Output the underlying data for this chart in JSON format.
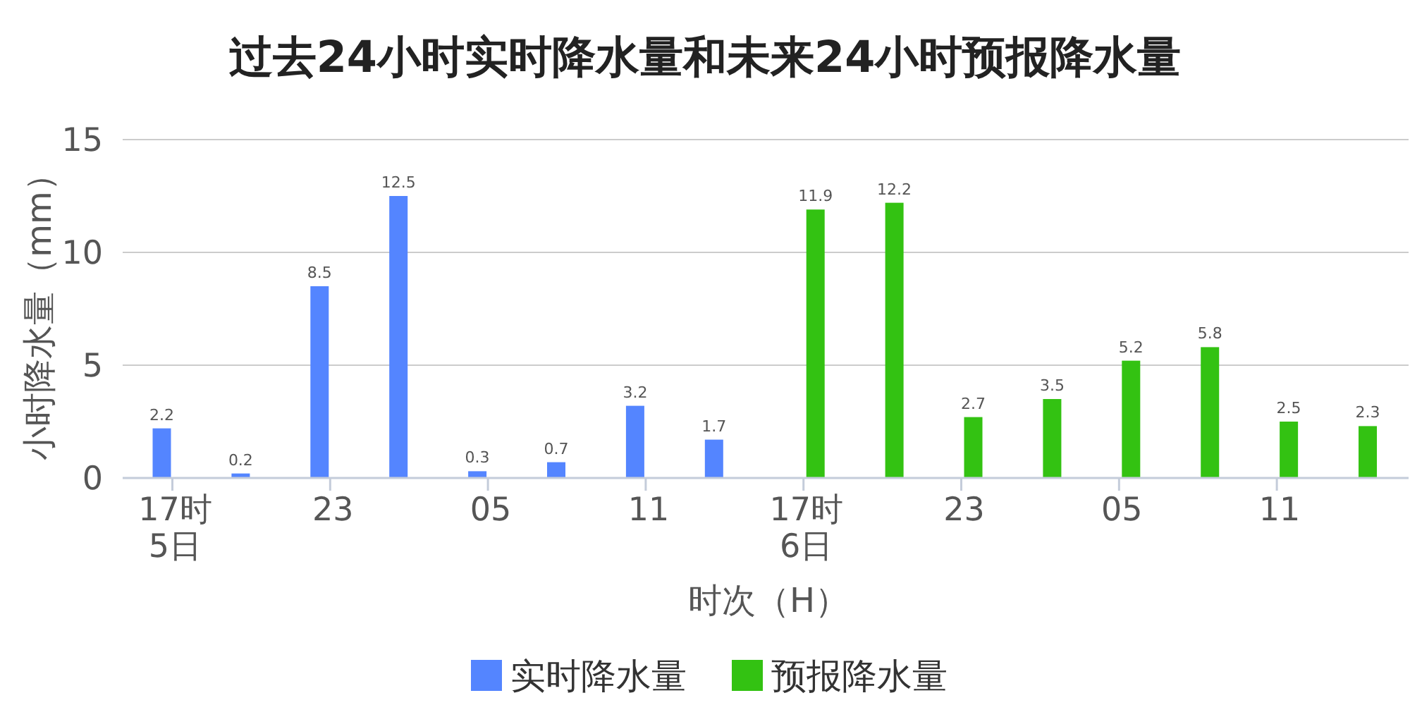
{
  "chart_data": {
    "type": "bar",
    "title": "过去24小时实时降水量和未来24小时预报降水量",
    "xlabel": "时次（H）",
    "ylabel": "小时降水量（mm）",
    "categories": [
      "17时\n5日",
      null,
      "23",
      null,
      "05",
      null,
      "11",
      null,
      "17时\n6日",
      null,
      "23",
      null,
      "05",
      null,
      "11",
      null
    ],
    "series": [
      {
        "name": "实时降水量",
        "color": "#5485ff",
        "values": [
          2.2,
          0.2,
          8.5,
          12.5,
          0.3,
          0.7,
          3.2,
          1.7,
          null,
          null,
          null,
          null,
          null,
          null,
          null,
          null
        ]
      },
      {
        "name": "预报降水量",
        "color": "#33c212",
        "values": [
          null,
          null,
          null,
          null,
          null,
          null,
          null,
          null,
          11.9,
          12.2,
          2.7,
          3.5,
          5.2,
          5.8,
          2.5,
          2.3
        ]
      }
    ],
    "ylim": [
      0,
      15
    ],
    "yticks": [
      0,
      5,
      10,
      15
    ],
    "grid": "y",
    "legend": "bottom",
    "data_labels": true
  }
}
